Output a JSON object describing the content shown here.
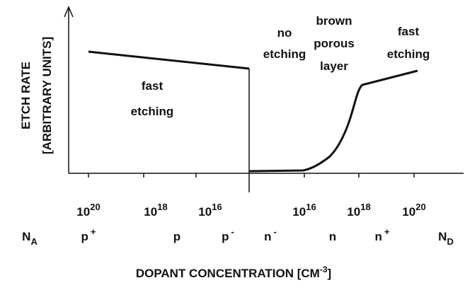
{
  "y_axis": {
    "title": "ETCH RATE",
    "units": "[ARBITRARY UNITS]"
  },
  "regions": [
    {
      "lines": [
        "fast",
        "etching"
      ]
    },
    {
      "lines": [
        "no",
        "etching"
      ]
    },
    {
      "lines": [
        "brown",
        "porous",
        "layer"
      ]
    },
    {
      "lines": [
        "fast",
        "etching"
      ]
    }
  ],
  "concentration_labels": [
    {
      "base": "10",
      "exp": "20"
    },
    {
      "base": "10",
      "exp": "18"
    },
    {
      "base": "10",
      "exp": "16"
    },
    {
      "base": "10",
      "exp": "16"
    },
    {
      "base": "10",
      "exp": "18"
    },
    {
      "base": "10",
      "exp": "20"
    }
  ],
  "doping_labels": [
    {
      "base": "N",
      "sub": "A"
    },
    {
      "base": "p",
      "sup": "+"
    },
    {
      "base": "p"
    },
    {
      "base": "p",
      "sup": "-"
    },
    {
      "base": "n",
      "sup": "-"
    },
    {
      "base": "n"
    },
    {
      "base": "n",
      "sup": "+"
    },
    {
      "base": "N",
      "sub": "D"
    }
  ],
  "x_axis": {
    "title": "DOPANT CONCENTRATION [CM",
    "unit_exp": "-3",
    "close": "]"
  }
}
